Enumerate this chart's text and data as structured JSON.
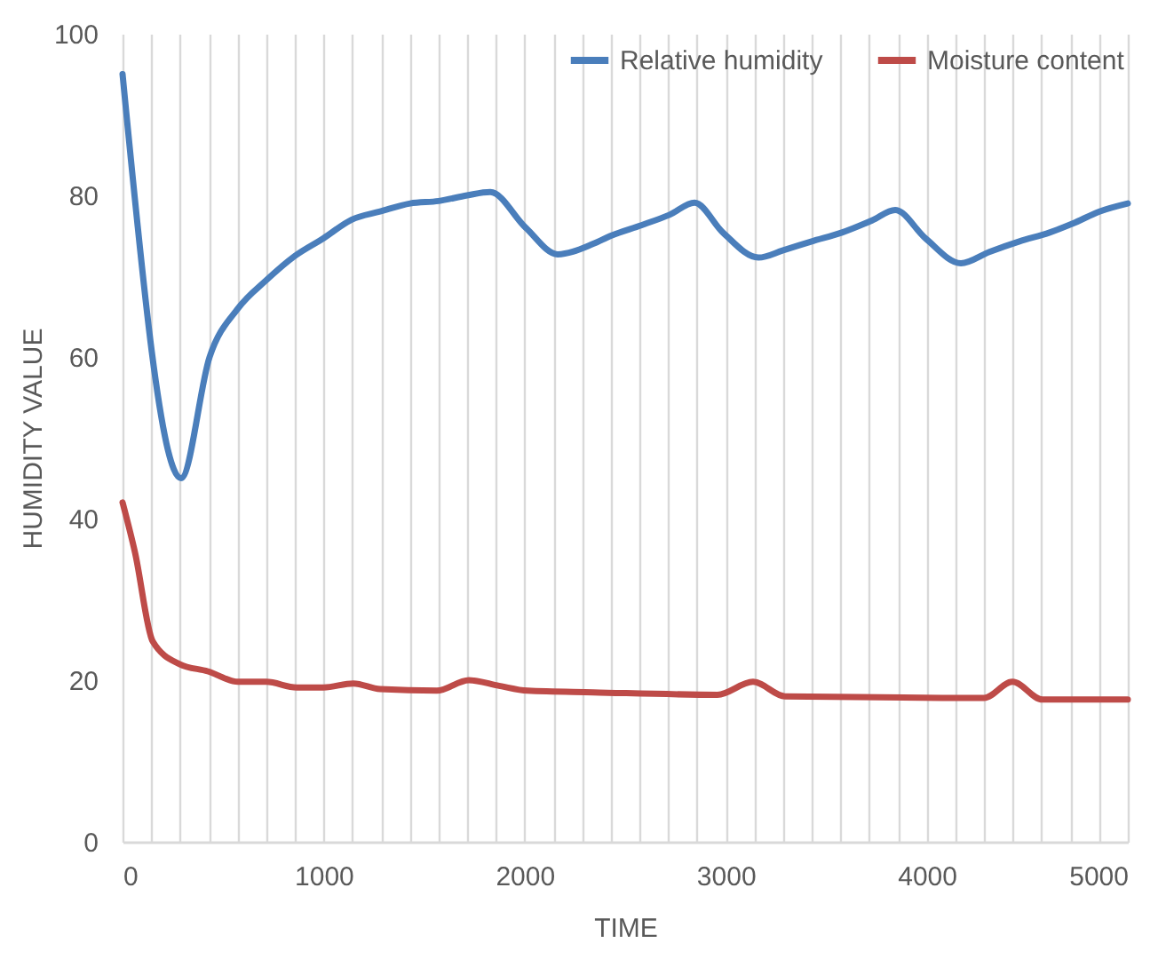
{
  "chart_data": {
    "type": "line",
    "xlabel": "TIME",
    "ylabel": "HUMIDITY VALUE",
    "xlim": [
      0,
      5000
    ],
    "ylim": [
      0,
      100
    ],
    "xticks": [
      0,
      {
        "value": 142.9,
        "label": null
      },
      {
        "value": 285.7,
        "label": null
      },
      {
        "value": 428.6,
        "label": null
      },
      {
        "value": 571.4,
        "label": null
      },
      {
        "value": 714.3,
        "label": null
      },
      {
        "value": 857.1,
        "label": null
      },
      1000,
      {
        "value": 1142.9,
        "label": null
      },
      {
        "value": 1285.7,
        "label": null
      },
      {
        "value": 1428.6,
        "label": null
      },
      {
        "value": 1571.4,
        "label": null
      },
      {
        "value": 1714.3,
        "label": null
      },
      {
        "value": 1857.1,
        "label": null
      },
      2000,
      {
        "value": 2142.9,
        "label": null
      },
      {
        "value": 2285.7,
        "label": null
      },
      {
        "value": 2428.6,
        "label": null
      },
      {
        "value": 2571.4,
        "label": null
      },
      {
        "value": 2714.3,
        "label": null
      },
      {
        "value": 2857.1,
        "label": null
      },
      3000,
      {
        "value": 3142.9,
        "label": null
      },
      {
        "value": 3285.7,
        "label": null
      },
      {
        "value": 3428.6,
        "label": null
      },
      {
        "value": 3571.4,
        "label": null
      },
      {
        "value": 3714.3,
        "label": null
      },
      {
        "value": 3857.1,
        "label": null
      },
      4000,
      {
        "value": 4142.9,
        "label": null
      },
      {
        "value": 4285.7,
        "label": null
      },
      {
        "value": 4428.6,
        "label": null
      },
      {
        "value": 4571.4,
        "label": null
      },
      {
        "value": 4714.3,
        "label": null
      },
      {
        "value": 4857.1,
        "label": null
      },
      5000
    ],
    "yticks": [
      0,
      20,
      40,
      60,
      80,
      100
    ],
    "grid": "x",
    "legend": "top right",
    "line_style": "solid",
    "marker": "none",
    "series": [
      {
        "name": "Relative humidity",
        "color": "#4a7ebb",
        "x": [
          0,
          291,
          433,
          574,
          715,
          857,
          1000,
          1140,
          1281,
          1431,
          1572,
          1714,
          1829,
          2005,
          2164,
          2341,
          2429,
          2580,
          2721,
          2845,
          2986,
          3163,
          3286,
          3428,
          3578,
          3728,
          3843,
          3993,
          4170,
          4311,
          4461,
          4611,
          4726,
          4859,
          5000
        ],
        "values": [
          95,
          45,
          60,
          66,
          69.5,
          72.5,
          74.7,
          77,
          78,
          79,
          79.3,
          80,
          80.4,
          76,
          72.7,
          74,
          75,
          76.3,
          77.6,
          79.1,
          75.4,
          72.3,
          73.2,
          74.3,
          75.4,
          76.9,
          78.2,
          74.7,
          71.6,
          73,
          74.3,
          75.4,
          76.5,
          78,
          79
        ]
      },
      {
        "name": "Moisture content",
        "color": "#be4b48",
        "x": [
          0,
          62,
          150,
          283,
          424,
          574,
          715,
          866,
          1000,
          1148,
          1281,
          1563,
          1723,
          1873,
          2014,
          2341,
          2959,
          3136,
          3295,
          4196,
          4285,
          4426,
          4576,
          5000
        ],
        "values": [
          42,
          35.8,
          24.8,
          22,
          21.1,
          19.8,
          19.8,
          19.1,
          19.1,
          19.6,
          18.9,
          18.7,
          20,
          19.3,
          18.7,
          18.5,
          18.2,
          19.8,
          18,
          17.8,
          17.8,
          19.8,
          17.6,
          17.6
        ]
      }
    ]
  }
}
